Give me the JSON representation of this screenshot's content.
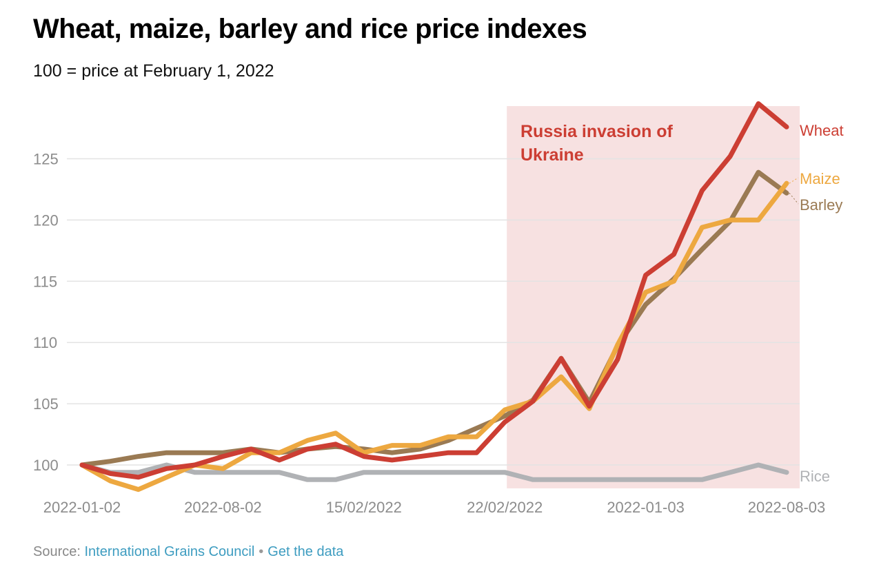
{
  "title": "Wheat, maize, barley and rice price indexes",
  "subtitle": "100 = price at February 1, 2022",
  "source": {
    "prefix": "Source: ",
    "link_text": "International Grains Council",
    "separator": "•",
    "data_link_text": "Get the data"
  },
  "colors": {
    "wheat": "#cc3e33",
    "maize": "#eda840",
    "barley": "#9a7a53",
    "rice": "#b0b2b5",
    "shade": "#f7e1e1",
    "annotation": "#cc3e33",
    "grid": "#e3e3e3",
    "tick": "#8c8c8c"
  },
  "chart_data": {
    "type": "line",
    "title": "Wheat, maize, barley and rice price indexes",
    "subtitle": "100 = price at February 1, 2022",
    "xlabel": "",
    "ylabel": "",
    "ylim": [
      98,
      130
    ],
    "yticks": [
      100,
      105,
      110,
      115,
      120,
      125
    ],
    "grid": true,
    "n_points": 26,
    "x_tick_labels": [
      {
        "index": 0,
        "label": "2022-01-02"
      },
      {
        "index": 5,
        "label": "2022-08-02"
      },
      {
        "index": 10,
        "label": "15/02/2022"
      },
      {
        "index": 15,
        "label": "22/02/2022"
      },
      {
        "index": 20,
        "label": "2022-01-03"
      },
      {
        "index": 25,
        "label": "2022-08-03"
      }
    ],
    "shaded_region": {
      "start_index": 15,
      "end_index": 25,
      "label": "Russia invasion of Ukraine"
    },
    "series": [
      {
        "name": "Wheat",
        "key": "wheat",
        "values": [
          100,
          99.3,
          99.0,
          99.7,
          100.0,
          100.7,
          101.3,
          100.4,
          101.3,
          101.7,
          100.7,
          100.4,
          100.7,
          101.0,
          101.0,
          103.5,
          105.2,
          108.7,
          104.8,
          108.6,
          115.5,
          117.2,
          122.4,
          125.2,
          129.5,
          127.6
        ]
      },
      {
        "name": "Maize",
        "key": "maize",
        "values": [
          100,
          98.7,
          98.0,
          99.0,
          100.0,
          99.7,
          101.0,
          101.0,
          102.0,
          102.6,
          101.0,
          101.6,
          101.6,
          102.3,
          102.3,
          104.5,
          105.2,
          107.2,
          104.6,
          109.8,
          114.1,
          115.0,
          119.4,
          120.0,
          120.0,
          123.0
        ]
      },
      {
        "name": "Barley",
        "key": "barley",
        "values": [
          100,
          100.3,
          100.7,
          101.0,
          101.0,
          101.0,
          101.3,
          101.0,
          101.3,
          101.5,
          101.3,
          101.0,
          101.3,
          102.0,
          103.0,
          104.0,
          105.3,
          108.7,
          105.1,
          109.7,
          113.1,
          115.2,
          117.6,
          119.9,
          123.9,
          122.2
        ]
      },
      {
        "name": "Rice",
        "key": "rice",
        "values": [
          100,
          99.4,
          99.4,
          100.0,
          99.4,
          99.4,
          99.4,
          99.4,
          98.8,
          98.8,
          99.4,
          99.4,
          99.4,
          99.4,
          99.4,
          99.4,
          98.8,
          98.8,
          98.8,
          98.8,
          98.8,
          98.8,
          98.8,
          99.4,
          100.0,
          99.4
        ]
      }
    ]
  }
}
